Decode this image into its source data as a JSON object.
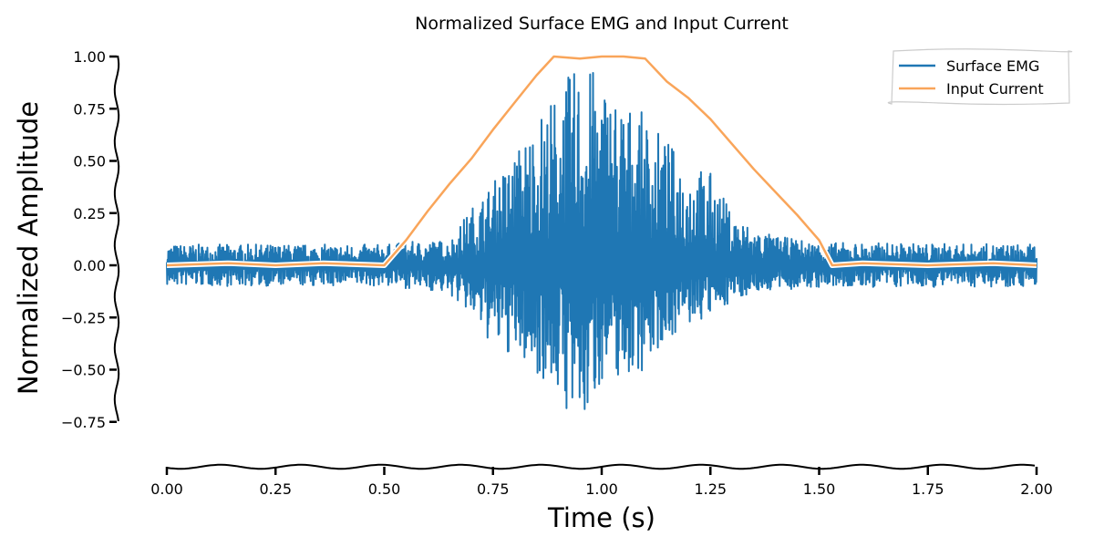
{
  "chart_data": {
    "type": "line",
    "title": "Normalized Surface EMG and Input Current",
    "xlabel": "Time (s)",
    "ylabel": "Normalized Amplitude",
    "xlim": [
      0,
      2
    ],
    "ylim": [
      -0.75,
      1.0
    ],
    "x_ticks": [
      "0.00",
      "0.25",
      "0.50",
      "0.75",
      "1.00",
      "1.25",
      "1.50",
      "1.75",
      "2.00"
    ],
    "y_ticks": [
      "1.00",
      "0.75",
      "0.50",
      "0.25",
      "0.00",
      "−0.25",
      "−0.50",
      "−0.75"
    ],
    "grid": false,
    "legend_position": "top-right",
    "series": [
      {
        "name": "Surface EMG",
        "color": "#1f77b4",
        "envelope": {
          "x": [
            0.0,
            0.5,
            0.55,
            0.6,
            0.65,
            0.7,
            0.75,
            0.8,
            0.85,
            0.9,
            0.95,
            1.0,
            1.05,
            1.1,
            1.15,
            1.2,
            1.25,
            1.3,
            1.35,
            1.4,
            1.5,
            2.0
          ],
          "max": [
            0.1,
            0.1,
            0.11,
            0.12,
            0.12,
            0.28,
            0.4,
            0.55,
            0.72,
            0.85,
            0.98,
            0.92,
            0.8,
            0.72,
            0.6,
            0.5,
            0.45,
            0.25,
            0.18,
            0.14,
            0.11,
            0.1
          ],
          "min": [
            -0.1,
            -0.1,
            -0.11,
            -0.12,
            -0.14,
            -0.25,
            -0.4,
            -0.45,
            -0.52,
            -0.62,
            -0.85,
            -0.55,
            -0.55,
            -0.5,
            -0.35,
            -0.3,
            -0.25,
            -0.17,
            -0.13,
            -0.12,
            -0.11,
            -0.1
          ]
        }
      },
      {
        "name": "Input Current",
        "color": "#f9a55a",
        "x": [
          0.0,
          0.14,
          0.25,
          0.36,
          0.5,
          0.55,
          0.6,
          0.65,
          0.7,
          0.75,
          0.8,
          0.85,
          0.89,
          0.95,
          1.0,
          1.05,
          1.1,
          1.15,
          1.2,
          1.25,
          1.3,
          1.35,
          1.4,
          1.45,
          1.5,
          1.53,
          1.6,
          1.75,
          1.9,
          2.0
        ],
        "values": [
          0.0,
          0.01,
          0.0,
          0.01,
          0.0,
          0.12,
          0.26,
          0.39,
          0.51,
          0.65,
          0.78,
          0.91,
          1.0,
          0.99,
          1.0,
          1.0,
          0.99,
          0.88,
          0.8,
          0.7,
          0.58,
          0.46,
          0.35,
          0.24,
          0.12,
          0.0,
          0.01,
          0.0,
          0.01,
          0.0
        ]
      }
    ]
  }
}
